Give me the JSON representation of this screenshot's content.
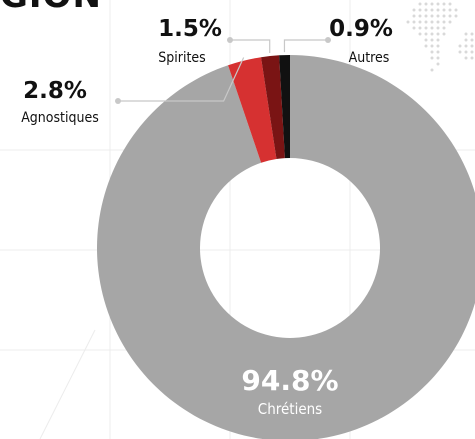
{
  "header": {
    "title_fragment": "GION"
  },
  "chart_data": {
    "type": "pie",
    "subtype": "donut",
    "start_angle_deg": 0,
    "direction": "clockwise",
    "slices": [
      {
        "label": "Chrétiens",
        "value": 94.8,
        "value_label": "94.8%",
        "color": "#a6a6a6"
      },
      {
        "label": "Agnostiques",
        "value": 2.8,
        "value_label": "2.8%",
        "color": "#d63131"
      },
      {
        "label": "Spirites",
        "value": 1.5,
        "value_label": "1.5%",
        "color": "#7a1414"
      },
      {
        "label": "Autres",
        "value": 0.9,
        "value_label": "0.9%",
        "color": "#111111"
      }
    ],
    "background_color": "#ffffff",
    "leader_line_color": "#c8c8c8"
  }
}
